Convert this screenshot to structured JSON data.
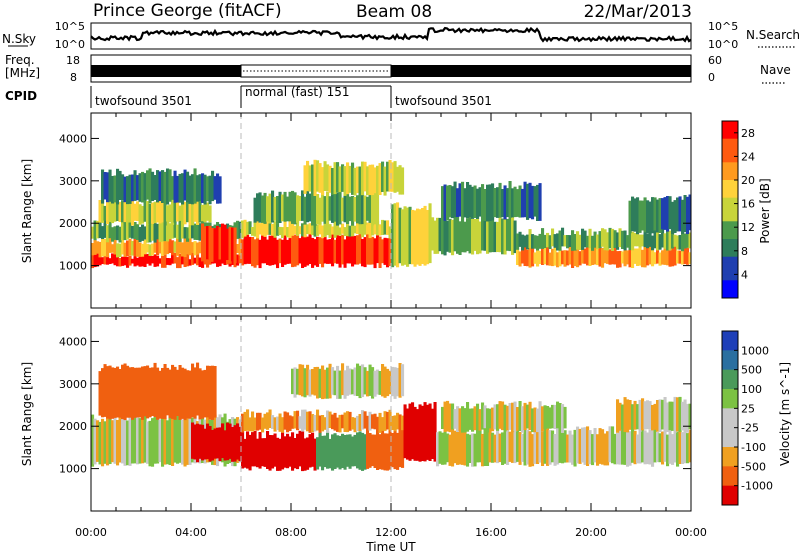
{
  "header": {
    "station": "Prince George (fitACF)",
    "beam": "Beam 08",
    "date": "22/Mar/2013"
  },
  "top_panels": {
    "nsky_label": "N.Sky",
    "nsky_ticks": [
      "10^5",
      "10^0"
    ],
    "nsearch_label": "N.Search",
    "freq_label_1": "Freq.",
    "freq_label_2": "[MHz]",
    "freq_ticks": [
      "18",
      "8"
    ],
    "nave_label": "Nave",
    "nave_ticks": [
      "60",
      "0"
    ],
    "cpid_label": "CPID",
    "cpid_segments": [
      {
        "label": "twofsound 3501",
        "start_hour": 0,
        "end_hour": 6
      },
      {
        "label": "normal (fast) 151",
        "start_hour": 6,
        "end_hour": 12
      },
      {
        "label": "twofsound 3501",
        "start_hour": 12,
        "end_hour": 24
      }
    ]
  },
  "colors": {
    "power_scale": [
      "#0000ff",
      "#1f3fb0",
      "#2e7d5b",
      "#4c9a4c",
      "#c8d43a",
      "#ffd23a",
      "#ff9a1f",
      "#ff5a10",
      "#ff0000"
    ],
    "velocity_scale": [
      "#1e3fb8",
      "#2a6fa0",
      "#4a9a5a",
      "#7cc243",
      "#c8c8c8",
      "#c8c8c8",
      "#f0a020",
      "#f06010",
      "#e00000"
    ]
  },
  "chart_data": [
    {
      "type": "heatmap",
      "title": "",
      "xlabel": "Time UT",
      "ylabel": "Slant Range [km]",
      "xlim": [
        0,
        24
      ],
      "ylim": [
        0,
        4600
      ],
      "x_ticks": [
        "00:00",
        "04:00",
        "08:00",
        "12:00",
        "16:00",
        "20:00",
        "00:00"
      ],
      "y_ticks": [
        1000,
        2000,
        3000,
        4000
      ],
      "colorbar_label": "Power [dB]",
      "colorbar_ticks": [
        "28",
        "24",
        "20",
        "16",
        "12",
        "8",
        "4"
      ],
      "colorbar_range": [
        0,
        30
      ],
      "regions": [
        {
          "t_start": 0.0,
          "t_end": 6.0,
          "range_low": 1000,
          "range_high": 1250,
          "value": 28
        },
        {
          "t_start": 0.0,
          "t_end": 6.0,
          "range_low": 1250,
          "range_high": 1600,
          "value": 20
        },
        {
          "t_start": 0.0,
          "t_end": 6.0,
          "range_low": 1600,
          "range_high": 2000,
          "value": 12
        },
        {
          "t_start": 0.3,
          "t_end": 4.8,
          "range_low": 2000,
          "range_high": 2500,
          "value": 16
        },
        {
          "t_start": 0.4,
          "t_end": 5.2,
          "range_low": 2500,
          "range_high": 3200,
          "value": 8
        },
        {
          "t_start": 4.4,
          "t_end": 5.8,
          "range_low": 1100,
          "range_high": 1900,
          "value": 28
        },
        {
          "t_start": 6.0,
          "t_end": 12.0,
          "range_low": 1000,
          "range_high": 1700,
          "value": 28
        },
        {
          "t_start": 6.0,
          "t_end": 12.0,
          "range_low": 1700,
          "range_high": 2000,
          "value": 16
        },
        {
          "t_start": 6.5,
          "t_end": 11.5,
          "range_low": 2000,
          "range_high": 2700,
          "value": 12
        },
        {
          "t_start": 8.5,
          "t_end": 12.5,
          "range_low": 2700,
          "range_high": 3400,
          "value": 16
        },
        {
          "t_start": 12.0,
          "t_end": 13.6,
          "range_low": 1000,
          "range_high": 2400,
          "value": 16
        },
        {
          "t_start": 13.6,
          "t_end": 17.0,
          "range_low": 1300,
          "range_high": 2100,
          "value": 12
        },
        {
          "t_start": 14.0,
          "t_end": 18.0,
          "range_low": 2100,
          "range_high": 2900,
          "value": 8
        },
        {
          "t_start": 17.0,
          "t_end": 24.0,
          "range_low": 1000,
          "range_high": 1400,
          "value": 22
        },
        {
          "t_start": 17.0,
          "t_end": 24.0,
          "range_low": 1400,
          "range_high": 1800,
          "value": 12
        },
        {
          "t_start": 21.5,
          "t_end": 24.0,
          "range_low": 1800,
          "range_high": 2600,
          "value": 8
        }
      ]
    },
    {
      "type": "heatmap",
      "title": "",
      "xlabel": "Time UT",
      "ylabel": "Slant Range [km]",
      "xlim": [
        0,
        24
      ],
      "ylim": [
        0,
        4600
      ],
      "x_ticks": [
        "00:00",
        "04:00",
        "08:00",
        "12:00",
        "16:00",
        "20:00",
        "00:00"
      ],
      "y_ticks": [
        1000,
        2000,
        3000,
        4000
      ],
      "colorbar_label": "Velocity [m s^-1]",
      "colorbar_ticks": [
        "1000",
        "500",
        "100",
        "25",
        "-25",
        "-100",
        "-500",
        "-1000"
      ],
      "regions": [
        {
          "t_start": 0.0,
          "t_end": 6.0,
          "range_low": 1100,
          "range_high": 2200,
          "value": 0
        },
        {
          "t_start": 0.3,
          "t_end": 5.0,
          "range_low": 2200,
          "range_high": 3400,
          "value": -300
        },
        {
          "t_start": 4.0,
          "t_end": 6.0,
          "range_low": 1200,
          "range_high": 2000,
          "value": -700
        },
        {
          "t_start": 6.0,
          "t_end": 9.0,
          "range_low": 1000,
          "range_high": 1800,
          "value": -700
        },
        {
          "t_start": 9.0,
          "t_end": 11.0,
          "range_low": 1000,
          "range_high": 1800,
          "value": 300
        },
        {
          "t_start": 11.0,
          "t_end": 12.5,
          "range_low": 1000,
          "range_high": 1900,
          "value": -300
        },
        {
          "t_start": 6.0,
          "t_end": 12.5,
          "range_low": 1900,
          "range_high": 2300,
          "value": -80
        },
        {
          "t_start": 8.0,
          "t_end": 12.5,
          "range_low": 2700,
          "range_high": 3400,
          "value": 0
        },
        {
          "t_start": 12.5,
          "t_end": 13.8,
          "range_low": 1200,
          "range_high": 2500,
          "value": -600
        },
        {
          "t_start": 13.8,
          "t_end": 24.0,
          "range_low": 1100,
          "range_high": 1900,
          "value": 0
        },
        {
          "t_start": 14.0,
          "t_end": 19.0,
          "range_low": 1900,
          "range_high": 2500,
          "value": 0
        },
        {
          "t_start": 21.0,
          "t_end": 24.0,
          "range_low": 1900,
          "range_high": 2600,
          "value": 0
        }
      ]
    }
  ]
}
